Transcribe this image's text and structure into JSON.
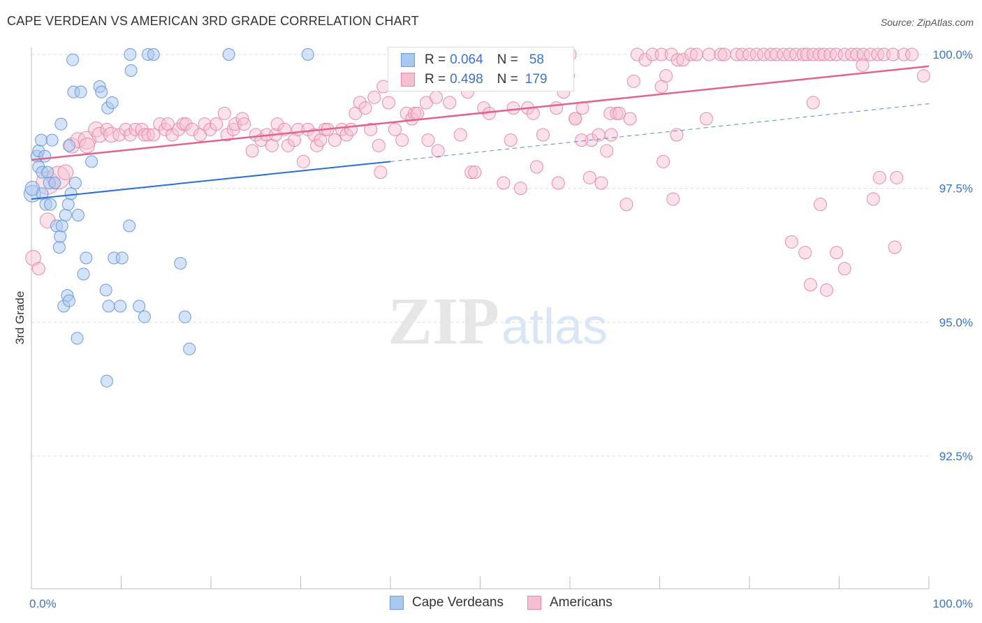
{
  "title": "CAPE VERDEAN VS AMERICAN 3RD GRADE CORRELATION CHART",
  "source": "Source: ZipAtlas.com",
  "watermark": {
    "zip": "ZIP",
    "atlas": "atlas"
  },
  "legend_stats": [
    {
      "r_label": "R =",
      "r_value": "0.064",
      "n_label": "N =",
      "n_value": "58"
    },
    {
      "r_label": "R =",
      "r_value": "0.498",
      "n_label": "N =",
      "n_value": "179"
    }
  ],
  "colors": {
    "blue_fill": "#a9c8ef",
    "blue_stroke": "#6c9bd8",
    "blue_line": "#2a6fd0",
    "pink_fill": "#f6bfd0",
    "pink_stroke": "#e58aa8",
    "pink_line": "#e0648f",
    "tick_label": "#3b73c9",
    "grid": "#dcdcdc"
  },
  "chart_data": {
    "type": "scatter",
    "title": "CAPE VERDEAN VS AMERICAN 3RD GRADE CORRELATION CHART",
    "xlabel": "",
    "ylabel": "3rd Grade",
    "xlim": [
      0,
      100
    ],
    "ylim": [
      90.0,
      100.4
    ],
    "x_tick_labels": [
      "0.0%",
      "100.0%"
    ],
    "y_ticks": [
      92.5,
      95.0,
      97.5,
      100.0
    ],
    "y_tick_labels": [
      "92.5%",
      "95.0%",
      "97.5%",
      "100.0%"
    ],
    "grid": true,
    "legend": "bottom",
    "series": [
      {
        "name": "Cape Verdeans",
        "trend": {
          "x": [
            0,
            40
          ],
          "y": [
            97.3,
            98.0
          ],
          "dashed_to": [
            100,
            99.08
          ]
        },
        "points": [
          [
            0.1,
            97.4,
            14
          ],
          [
            0.1,
            97.5,
            12
          ],
          [
            0.6,
            98.1,
            10
          ],
          [
            0.8,
            98.2,
            10
          ],
          [
            0.8,
            97.9,
            10
          ],
          [
            1.1,
            98.4,
            10
          ],
          [
            1.2,
            97.8,
            10
          ],
          [
            1.2,
            97.4,
            10
          ],
          [
            1.5,
            98.1,
            10
          ],
          [
            1.6,
            97.2,
            10
          ],
          [
            1.8,
            97.8,
            10
          ],
          [
            2.0,
            97.6,
            10
          ],
          [
            2.1,
            97.2,
            10
          ],
          [
            2.3,
            98.4,
            10
          ],
          [
            2.6,
            97.6,
            10
          ],
          [
            2.8,
            96.8,
            10
          ],
          [
            3.1,
            96.4,
            10
          ],
          [
            3.2,
            96.6,
            10
          ],
          [
            3.3,
            98.7,
            10
          ],
          [
            3.4,
            96.8,
            10
          ],
          [
            3.6,
            95.3,
            10
          ],
          [
            3.8,
            97.0,
            10
          ],
          [
            4.0,
            95.5,
            10
          ],
          [
            4.1,
            97.2,
            10
          ],
          [
            4.2,
            95.4,
            10
          ],
          [
            4.2,
            98.3,
            10
          ],
          [
            4.4,
            97.4,
            10
          ],
          [
            4.6,
            99.9,
            10
          ],
          [
            4.7,
            99.3,
            10
          ],
          [
            4.9,
            97.6,
            10
          ],
          [
            5.2,
            97.0,
            10
          ],
          [
            5.1,
            94.7,
            10
          ],
          [
            5.5,
            99.3,
            10
          ],
          [
            5.8,
            95.9,
            10
          ],
          [
            6.1,
            96.2,
            10
          ],
          [
            6.7,
            98.0,
            10
          ],
          [
            7.6,
            99.4,
            10
          ],
          [
            7.8,
            99.3,
            10
          ],
          [
            8.3,
            95.6,
            10
          ],
          [
            8.5,
            99.0,
            10
          ],
          [
            8.4,
            93.9,
            10
          ],
          [
            8.6,
            95.3,
            10
          ],
          [
            9.0,
            99.1,
            10
          ],
          [
            9.2,
            96.2,
            10
          ],
          [
            9.9,
            95.3,
            10
          ],
          [
            10.1,
            96.2,
            10
          ],
          [
            10.9,
            96.8,
            10
          ],
          [
            11.0,
            100.0,
            10
          ],
          [
            11.1,
            99.7,
            10
          ],
          [
            12.0,
            95.3,
            10
          ],
          [
            12.6,
            95.1,
            10
          ],
          [
            13.0,
            100.0,
            10
          ],
          [
            13.6,
            100.0,
            10
          ],
          [
            16.6,
            96.1,
            10
          ],
          [
            17.1,
            95.1,
            10
          ],
          [
            17.6,
            94.5,
            10
          ],
          [
            22.0,
            100.0,
            10
          ],
          [
            30.8,
            100.0,
            10
          ]
        ]
      },
      {
        "name": "Americans",
        "trend": {
          "x": [
            0,
            100
          ],
          "y": [
            98.03,
            99.78
          ]
        },
        "points": [
          [
            0.2,
            96.2,
            12
          ],
          [
            0.8,
            96.0,
            10
          ],
          [
            1.8,
            97.6,
            18
          ],
          [
            1.8,
            96.9,
            12
          ],
          [
            3.0,
            97.7,
            18
          ],
          [
            3.8,
            97.8,
            12
          ],
          [
            4.5,
            98.3,
            12
          ],
          [
            5.2,
            98.4,
            12
          ],
          [
            6.2,
            98.4,
            14
          ],
          [
            6.2,
            98.3,
            12
          ],
          [
            7.2,
            98.6,
            12
          ],
          [
            7.6,
            98.5,
            12
          ],
          [
            8.4,
            98.6,
            10
          ],
          [
            8.9,
            98.5,
            12
          ],
          [
            9.8,
            98.5,
            10
          ],
          [
            10.5,
            98.6,
            10
          ],
          [
            11.0,
            98.5,
            10
          ],
          [
            11.6,
            98.6,
            10
          ],
          [
            12.3,
            98.6,
            10
          ],
          [
            12.6,
            98.5,
            10
          ],
          [
            13.0,
            98.5,
            10
          ],
          [
            13.6,
            98.5,
            10
          ],
          [
            14.3,
            98.7,
            10
          ],
          [
            14.9,
            98.6,
            10
          ],
          [
            15.2,
            98.7,
            10
          ],
          [
            15.7,
            98.5,
            10
          ],
          [
            16.4,
            98.6,
            10
          ],
          [
            16.9,
            98.7,
            10
          ],
          [
            17.2,
            98.7,
            10
          ],
          [
            17.9,
            98.6,
            10
          ],
          [
            18.8,
            98.5,
            10
          ],
          [
            19.3,
            98.7,
            10
          ],
          [
            19.9,
            98.6,
            10
          ],
          [
            20.6,
            98.7,
            10
          ],
          [
            21.5,
            98.9,
            10
          ],
          [
            21.8,
            98.5,
            10
          ],
          [
            22.5,
            98.6,
            10
          ],
          [
            22.7,
            98.7,
            10
          ],
          [
            23.5,
            98.8,
            10
          ],
          [
            23.7,
            98.7,
            10
          ],
          [
            24.6,
            98.2,
            10
          ],
          [
            25.0,
            98.5,
            10
          ],
          [
            25.6,
            98.4,
            10
          ],
          [
            26.2,
            98.5,
            10
          ],
          [
            26.8,
            98.3,
            10
          ],
          [
            27.2,
            98.5,
            10
          ],
          [
            27.4,
            98.7,
            10
          ],
          [
            28.2,
            98.6,
            10
          ],
          [
            28.6,
            98.3,
            10
          ],
          [
            29.3,
            98.4,
            10
          ],
          [
            29.7,
            98.6,
            10
          ],
          [
            30.3,
            98.0,
            10
          ],
          [
            30.8,
            98.6,
            10
          ],
          [
            31.5,
            98.5,
            10
          ],
          [
            31.8,
            98.3,
            10
          ],
          [
            32.2,
            98.4,
            10
          ],
          [
            32.7,
            98.6,
            10
          ],
          [
            33.0,
            98.6,
            10
          ],
          [
            33.8,
            98.4,
            10
          ],
          [
            34.6,
            98.6,
            10
          ],
          [
            35.1,
            98.5,
            10
          ],
          [
            35.6,
            98.6,
            10
          ],
          [
            36.1,
            98.9,
            10
          ],
          [
            36.6,
            99.1,
            10
          ],
          [
            37.2,
            99.0,
            10
          ],
          [
            37.8,
            98.6,
            10
          ],
          [
            38.2,
            99.2,
            10
          ],
          [
            38.7,
            98.3,
            10
          ],
          [
            38.9,
            97.8,
            10
          ],
          [
            39.2,
            99.4,
            10
          ],
          [
            39.8,
            99.1,
            10
          ],
          [
            40.5,
            98.6,
            10
          ],
          [
            41.3,
            98.4,
            10
          ],
          [
            41.8,
            98.9,
            10
          ],
          [
            42.4,
            98.8,
            10
          ],
          [
            42.7,
            98.9,
            10
          ],
          [
            43.0,
            98.9,
            10
          ],
          [
            44.0,
            99.1,
            10
          ],
          [
            44.2,
            98.4,
            10
          ],
          [
            45.1,
            99.2,
            10
          ],
          [
            45.3,
            98.2,
            10
          ],
          [
            46.6,
            99.1,
            10
          ],
          [
            47.8,
            98.5,
            10
          ],
          [
            48.6,
            99.3,
            10
          ],
          [
            49.0,
            97.8,
            10
          ],
          [
            49.4,
            97.8,
            10
          ],
          [
            50.4,
            99.0,
            10
          ],
          [
            51.0,
            98.9,
            10
          ],
          [
            52.6,
            97.6,
            10
          ],
          [
            53.4,
            98.4,
            10
          ],
          [
            53.7,
            99.0,
            10
          ],
          [
            54.5,
            97.5,
            10
          ],
          [
            55.3,
            99.0,
            10
          ],
          [
            55.9,
            98.9,
            10
          ],
          [
            56.3,
            97.9,
            10
          ],
          [
            57.0,
            98.5,
            10
          ],
          [
            58.5,
            99.0,
            10
          ],
          [
            58.7,
            97.6,
            10
          ],
          [
            59.3,
            99.3,
            10
          ],
          [
            59.8,
            99.6,
            10
          ],
          [
            60.0,
            100.0,
            10
          ],
          [
            60.6,
            98.8,
            10
          ],
          [
            61.4,
            99.0,
            10
          ],
          [
            62.4,
            98.4,
            10
          ],
          [
            63.2,
            98.5,
            10
          ],
          [
            63.5,
            97.6,
            10
          ],
          [
            64.5,
            98.9,
            10
          ],
          [
            64.6,
            98.5,
            10
          ],
          [
            65.2,
            98.9,
            10
          ],
          [
            65.5,
            98.9,
            10
          ],
          [
            66.3,
            97.2,
            10
          ],
          [
            66.7,
            98.8,
            10
          ],
          [
            67.1,
            99.5,
            10
          ],
          [
            67.5,
            100.0,
            10
          ],
          [
            68.4,
            99.9,
            10
          ],
          [
            69.2,
            100.0,
            10
          ],
          [
            70.2,
            100.0,
            10
          ],
          [
            70.7,
            99.6,
            10
          ],
          [
            71.3,
            100.0,
            10
          ],
          [
            72.0,
            99.9,
            10
          ],
          [
            72.6,
            99.9,
            10
          ],
          [
            73.5,
            100.0,
            10
          ],
          [
            74.1,
            100.0,
            10
          ],
          [
            75.5,
            100.0,
            10
          ],
          [
            76.8,
            100.0,
            10
          ],
          [
            77.2,
            100.0,
            10
          ],
          [
            78.6,
            100.0,
            10
          ],
          [
            79.2,
            100.0,
            10
          ],
          [
            80.0,
            100.0,
            10
          ],
          [
            80.8,
            100.0,
            10
          ],
          [
            81.6,
            100.0,
            10
          ],
          [
            82.4,
            100.0,
            10
          ],
          [
            83.0,
            100.0,
            10
          ],
          [
            83.8,
            100.0,
            10
          ],
          [
            84.5,
            100.0,
            10
          ],
          [
            85.2,
            100.0,
            10
          ],
          [
            86.0,
            100.0,
            10
          ],
          [
            86.4,
            100.0,
            10
          ],
          [
            87.1,
            100.0,
            10
          ],
          [
            87.8,
            100.0,
            10
          ],
          [
            88.3,
            100.0,
            10
          ],
          [
            89.0,
            100.0,
            10
          ],
          [
            89.7,
            100.0,
            10
          ],
          [
            90.6,
            100.0,
            10
          ],
          [
            91.4,
            100.0,
            10
          ],
          [
            92.0,
            100.0,
            10
          ],
          [
            92.7,
            100.0,
            10
          ],
          [
            93.5,
            100.0,
            10
          ],
          [
            94.3,
            100.0,
            10
          ],
          [
            95.0,
            100.0,
            10
          ],
          [
            96.0,
            100.0,
            10
          ],
          [
            97.2,
            100.0,
            10
          ],
          [
            98.1,
            100.0,
            10
          ],
          [
            99.4,
            99.6,
            10
          ],
          [
            90.6,
            96.0,
            10
          ],
          [
            86.2,
            96.3,
            10
          ],
          [
            84.7,
            96.5,
            10
          ],
          [
            87.9,
            97.2,
            10
          ],
          [
            86.8,
            95.7,
            10
          ],
          [
            75.2,
            98.8,
            10
          ],
          [
            70.2,
            99.4,
            10
          ],
          [
            71.5,
            97.3,
            10
          ],
          [
            71.9,
            98.5,
            10
          ],
          [
            70.4,
            98.0,
            10
          ],
          [
            64.1,
            98.2,
            10
          ],
          [
            62.2,
            97.7,
            10
          ],
          [
            61.3,
            98.4,
            10
          ],
          [
            60.6,
            98.8,
            10
          ],
          [
            93.8,
            97.3,
            10
          ],
          [
            94.5,
            97.7,
            10
          ],
          [
            96.2,
            96.4,
            10
          ],
          [
            92.6,
            99.8,
            10
          ],
          [
            87.1,
            99.1,
            10
          ],
          [
            88.6,
            95.6,
            10
          ],
          [
            89.7,
            96.3,
            10
          ],
          [
            96.4,
            97.7,
            10
          ]
        ]
      }
    ]
  }
}
